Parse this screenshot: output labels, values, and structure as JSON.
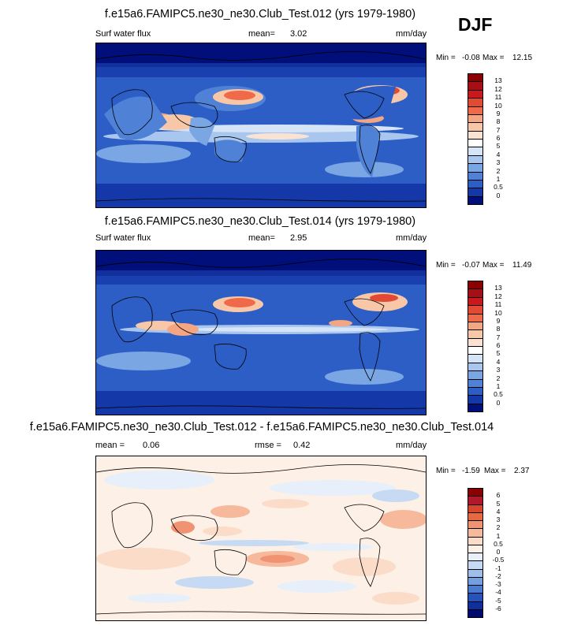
{
  "season": "DJF",
  "panels": [
    {
      "title": "f.e15a6.FAMIPC5.ne30_ne30.Club_Test.012 (yrs 1979-1980)",
      "left_label": "Surf water flux",
      "mean_label": "mean=",
      "mean_value": "3.02",
      "units": "mm/day",
      "min_label": "Min =",
      "min_value": "-0.08",
      "max_label": "Max =",
      "max_value": "12.15",
      "colorbar": {
        "levels": [
          "13",
          "12",
          "11",
          "10",
          "9",
          "8",
          "7",
          "6",
          "5",
          "4",
          "3",
          "2",
          "1",
          "0.5",
          "0"
        ],
        "colors": [
          "#8b0000",
          "#a50f15",
          "#cb181d",
          "#e34a33",
          "#f06a4a",
          "#f4a582",
          "#f8c7a8",
          "#fbe3d3",
          "#ffffff",
          "#d6e4f7",
          "#a8c6ee",
          "#7aa6e3",
          "#4f82d6",
          "#2c5ec6",
          "#1538a8",
          "#000f7a"
        ]
      }
    },
    {
      "title": "f.e15a6.FAMIPC5.ne30_ne30.Club_Test.014 (yrs 1979-1980)",
      "left_label": "Surf water flux",
      "mean_label": "mean=",
      "mean_value": "2.95",
      "units": "mm/day",
      "min_label": "Min =",
      "min_value": "-0.07",
      "max_label": "Max =",
      "max_value": "11.49",
      "colorbar": {
        "levels": [
          "13",
          "12",
          "11",
          "10",
          "9",
          "8",
          "7",
          "6",
          "5",
          "4",
          "3",
          "2",
          "1",
          "0.5",
          "0"
        ],
        "colors": [
          "#8b0000",
          "#a50f15",
          "#cb181d",
          "#e34a33",
          "#f06a4a",
          "#f4a582",
          "#f8c7a8",
          "#fbe3d3",
          "#ffffff",
          "#d6e4f7",
          "#a8c6ee",
          "#7aa6e3",
          "#4f82d6",
          "#2c5ec6",
          "#1538a8",
          "#000f7a"
        ]
      }
    },
    {
      "title": "f.e15a6.FAMIPC5.ne30_ne30.Club_Test.012 - f.e15a6.FAMIPC5.ne30_ne30.Club_Test.014",
      "left_label": "",
      "mean_label": "mean =",
      "mean_value": "0.06",
      "rmse_label": "rmse =",
      "rmse_value": "0.42",
      "units": "mm/day",
      "min_label": "Min =",
      "min_value": "-1.59",
      "max_label": "Max =",
      "max_value": "2.37",
      "colorbar": {
        "levels": [
          "6",
          "5",
          "4",
          "3",
          "2",
          "1",
          "0.5",
          "0",
          "-0.5",
          "-1",
          "-2",
          "-3",
          "-4",
          "-5",
          "-6"
        ],
        "colors": [
          "#8b0000",
          "#b2182b",
          "#d6452c",
          "#e8693f",
          "#f09373",
          "#f6b99c",
          "#fadcc8",
          "#fdf0e6",
          "#e6effa",
          "#c7daf3",
          "#9fbfeb",
          "#739fe0",
          "#4a7bd3",
          "#2652bd",
          "#0f2f9c",
          "#000a6e"
        ]
      }
    }
  ],
  "chart_data": [
    {
      "type": "heatmap",
      "title": "f.e15a6.FAMIPC5.ne30_ne30.Club_Test.012 (yrs 1979-1980)",
      "variable": "Surf water flux",
      "units": "mm/day",
      "mean": 3.02,
      "min": -0.08,
      "max": 12.15,
      "levels": [
        0,
        0.5,
        1,
        2,
        3,
        4,
        5,
        6,
        7,
        8,
        9,
        10,
        11,
        12,
        13
      ]
    },
    {
      "type": "heatmap",
      "title": "f.e15a6.FAMIPC5.ne30_ne30.Club_Test.014 (yrs 1979-1980)",
      "variable": "Surf water flux",
      "units": "mm/day",
      "mean": 2.95,
      "min": -0.07,
      "max": 11.49,
      "levels": [
        0,
        0.5,
        1,
        2,
        3,
        4,
        5,
        6,
        7,
        8,
        9,
        10,
        11,
        12,
        13
      ]
    },
    {
      "type": "heatmap",
      "title": "f.e15a6.FAMIPC5.ne30_ne30.Club_Test.012 - f.e15a6.FAMIPC5.ne30_ne30.Club_Test.014",
      "units": "mm/day",
      "mean": 0.06,
      "rmse": 0.42,
      "min": -1.59,
      "max": 2.37,
      "levels": [
        -6,
        -5,
        -4,
        -3,
        -2,
        -1,
        -0.5,
        0,
        0.5,
        1,
        2,
        3,
        4,
        5,
        6
      ]
    }
  ]
}
